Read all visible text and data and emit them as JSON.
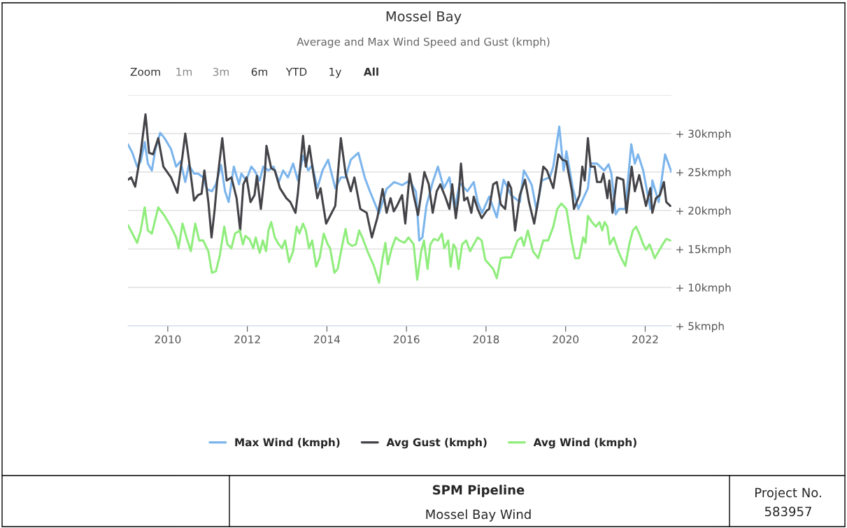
{
  "chart_data": {
    "type": "line",
    "title": "Mossel Bay",
    "subtitle": "Average and Max Wind Speed and Gust (kmph)",
    "annotations": [
      "Zoom",
      "1m",
      "3m",
      "6m",
      "YTD",
      "1y",
      "All",
      "SPM Pipeline",
      "Mossel Bay Wind",
      "Project No.",
      "583957"
    ],
    "xlim": [
      2009,
      2022.66
    ],
    "xticks": [
      2010,
      2012,
      2014,
      2016,
      2018,
      2020,
      2022
    ],
    "ylim": [
      5,
      35
    ],
    "yticks": [
      {
        "value": 5,
        "label": "+ 5kmph"
      },
      {
        "value": 10,
        "label": "+ 10kmph"
      },
      {
        "value": 15,
        "label": "+ 15kmph"
      },
      {
        "value": 20,
        "label": "+ 20kmph"
      },
      {
        "value": 25,
        "label": "+ 25kmph"
      },
      {
        "value": 30,
        "label": "+ 30kmph"
      },
      {
        "value": 35,
        "label": null
      }
    ],
    "grid": "y",
    "legend": "bottom",
    "marker": "none",
    "line_style": "solid",
    "series": [
      {
        "name": "Max Wind (kmph)",
        "color": "#7cb5ec",
        "x": [
          2009.0,
          2009.11,
          2009.23,
          2009.32,
          2009.42,
          2009.5,
          2009.6,
          2009.69,
          2009.81,
          2009.92,
          2010.08,
          2010.21,
          2010.32,
          2010.44,
          2010.53,
          2010.66,
          2010.76,
          2010.89,
          2010.98,
          2011.11,
          2011.21,
          2011.34,
          2011.44,
          2011.53,
          2011.66,
          2011.79,
          2011.85,
          2011.97,
          2012.1,
          2012.18,
          2012.31,
          2012.4,
          2012.53,
          2012.66,
          2012.79,
          2012.9,
          2013.02,
          2013.15,
          2013.27,
          2013.4,
          2013.53,
          2013.63,
          2013.76,
          2013.89,
          2014.03,
          2014.21,
          2014.35,
          2014.47,
          2014.6,
          2014.79,
          2014.95,
          2015.08,
          2015.31,
          2015.5,
          2015.69,
          2015.89,
          2016.08,
          2016.24,
          2016.32,
          2016.4,
          2016.5,
          2016.66,
          2016.79,
          2016.94,
          2017.08,
          2017.21,
          2017.34,
          2017.53,
          2017.69,
          2017.79,
          2017.9,
          2018.08,
          2018.27,
          2018.44,
          2018.63,
          2018.85,
          2018.95,
          2019.05,
          2019.15,
          2019.27,
          2019.4,
          2019.6,
          2019.69,
          2019.84,
          2019.95,
          2020.02,
          2020.18,
          2020.32,
          2020.56,
          2020.63,
          2020.79,
          2020.97,
          2021.08,
          2021.15,
          2021.26,
          2021.34,
          2021.5,
          2021.65,
          2021.74,
          2021.82,
          2021.95,
          2022.13,
          2022.18,
          2022.34,
          2022.5,
          2022.66
        ],
        "values": [
          28.6,
          27.5,
          25.7,
          26.4,
          28.9,
          26.1,
          25.2,
          28.0,
          30.1,
          29.4,
          28.0,
          25.7,
          26.4,
          23.7,
          25.9,
          24.8,
          24.8,
          24.3,
          22.8,
          22.5,
          23.4,
          25.9,
          22.5,
          21.1,
          25.7,
          23.4,
          24.8,
          23.9,
          25.7,
          25.2,
          23.9,
          25.7,
          25.2,
          25.7,
          23.7,
          25.2,
          24.3,
          26.1,
          23.9,
          27.1,
          25.2,
          25.9,
          22.9,
          25.2,
          26.6,
          22.9,
          24.3,
          24.3,
          26.6,
          27.5,
          24.3,
          22.5,
          19.6,
          22.8,
          23.7,
          23.3,
          23.9,
          22.4,
          16.1,
          16.5,
          20.6,
          23.7,
          25.7,
          22.9,
          24.3,
          20.2,
          23.6,
          22.5,
          23.7,
          21.1,
          19.7,
          21.8,
          19.1,
          24.0,
          22.0,
          21.1,
          25.2,
          24.3,
          23.3,
          20.0,
          23.9,
          24.3,
          25.7,
          30.9,
          25.2,
          27.7,
          22.9,
          20.2,
          22.9,
          26.1,
          26.1,
          25.2,
          26.0,
          24.8,
          19.5,
          20.2,
          20.2,
          28.6,
          26.1,
          27.3,
          25.2,
          20.2,
          23.9,
          21.1,
          27.3,
          25.0
        ]
      },
      {
        "name": "Avg Gust (kmph)",
        "color": "#434348",
        "x": [
          2009.0,
          2009.08,
          2009.18,
          2009.32,
          2009.44,
          2009.53,
          2009.63,
          2009.76,
          2009.89,
          2010.08,
          2010.24,
          2010.37,
          2010.44,
          2010.53,
          2010.66,
          2010.76,
          2010.85,
          2010.92,
          2011.02,
          2011.1,
          2011.18,
          2011.24,
          2011.37,
          2011.48,
          2011.6,
          2011.73,
          2011.82,
          2011.9,
          2011.98,
          2012.08,
          2012.18,
          2012.24,
          2012.34,
          2012.44,
          2012.48,
          2012.6,
          2012.69,
          2012.82,
          2012.98,
          2013.08,
          2013.21,
          2013.27,
          2013.4,
          2013.47,
          2013.56,
          2013.66,
          2013.76,
          2013.84,
          2013.98,
          2014.08,
          2014.21,
          2014.35,
          2014.47,
          2014.6,
          2014.69,
          2014.84,
          2015.0,
          2015.13,
          2015.27,
          2015.4,
          2015.5,
          2015.6,
          2015.68,
          2015.76,
          2015.89,
          2015.97,
          2016.08,
          2016.18,
          2016.29,
          2016.45,
          2016.56,
          2016.66,
          2016.76,
          2016.85,
          2016.98,
          2017.08,
          2017.15,
          2017.24,
          2017.31,
          2017.37,
          2017.45,
          2017.53,
          2017.63,
          2017.69,
          2017.79,
          2017.89,
          2018.02,
          2018.08,
          2018.18,
          2018.27,
          2018.37,
          2018.48,
          2018.56,
          2018.63,
          2018.73,
          2018.85,
          2018.98,
          2019.08,
          2019.21,
          2019.34,
          2019.44,
          2019.53,
          2019.69,
          2019.82,
          2019.92,
          2020.02,
          2020.16,
          2020.21,
          2020.35,
          2020.42,
          2020.48,
          2020.56,
          2020.63,
          2020.73,
          2020.79,
          2020.89,
          2020.95,
          2021.05,
          2021.1,
          2021.18,
          2021.29,
          2021.45,
          2021.53,
          2021.66,
          2021.74,
          2021.85,
          2022.02,
          2022.13,
          2022.18,
          2022.27,
          2022.37,
          2022.47,
          2022.53,
          2022.63
        ],
        "values": [
          24.0,
          24.3,
          23.1,
          27.5,
          32.5,
          27.5,
          27.3,
          29.4,
          25.7,
          24.3,
          22.3,
          27.1,
          30.0,
          26.6,
          21.3,
          22.0,
          22.2,
          25.2,
          21.1,
          16.5,
          20.2,
          23.7,
          29.4,
          23.9,
          24.3,
          21.6,
          17.4,
          23.4,
          24.3,
          21.1,
          22.0,
          24.5,
          20.2,
          24.8,
          28.4,
          25.5,
          25.2,
          22.9,
          21.6,
          21.1,
          19.7,
          22.2,
          29.7,
          25.7,
          28.4,
          24.8,
          21.6,
          22.9,
          18.3,
          19.3,
          20.6,
          29.4,
          24.8,
          22.5,
          24.3,
          20.2,
          19.7,
          16.5,
          19.1,
          22.8,
          19.7,
          21.6,
          19.9,
          20.6,
          22.0,
          18.3,
          24.8,
          22.0,
          19.4,
          25.0,
          23.4,
          19.7,
          22.5,
          23.4,
          21.7,
          20.2,
          23.4,
          19.0,
          21.8,
          26.1,
          21.3,
          21.7,
          19.7,
          21.8,
          20.2,
          19.0,
          20.0,
          20.2,
          23.4,
          23.7,
          20.8,
          20.2,
          23.7,
          22.9,
          17.4,
          22.0,
          24.0,
          21.1,
          18.3,
          22.2,
          25.7,
          25.2,
          22.9,
          27.3,
          26.6,
          26.4,
          22.5,
          20.2,
          22.0,
          25.7,
          23.9,
          29.4,
          25.7,
          25.7,
          23.7,
          23.7,
          24.8,
          21.6,
          23.9,
          19.7,
          24.3,
          24.0,
          19.7,
          25.7,
          22.5,
          24.6,
          20.6,
          22.9,
          19.7,
          21.6,
          22.0,
          23.7,
          21.1,
          20.6
        ]
      },
      {
        "name": "Avg Wind (kmph)",
        "color": "#90ed7d",
        "x": [
          2009.0,
          2009.11,
          2009.23,
          2009.32,
          2009.42,
          2009.5,
          2009.6,
          2009.76,
          2009.92,
          2010.08,
          2010.21,
          2010.27,
          2010.37,
          2010.47,
          2010.58,
          2010.69,
          2010.79,
          2010.89,
          2011.02,
          2011.11,
          2011.21,
          2011.31,
          2011.42,
          2011.5,
          2011.6,
          2011.69,
          2011.81,
          2011.89,
          2011.95,
          2012.05,
          2012.15,
          2012.21,
          2012.31,
          2012.39,
          2012.47,
          2012.53,
          2012.6,
          2012.69,
          2012.79,
          2012.87,
          2012.95,
          2013.05,
          2013.15,
          2013.24,
          2013.31,
          2013.4,
          2013.47,
          2013.55,
          2013.63,
          2013.73,
          2013.82,
          2013.92,
          2014.02,
          2014.08,
          2014.19,
          2014.27,
          2014.39,
          2014.47,
          2014.53,
          2014.63,
          2014.73,
          2014.81,
          2014.89,
          2015.02,
          2015.18,
          2015.31,
          2015.4,
          2015.47,
          2015.53,
          2015.63,
          2015.73,
          2015.82,
          2015.95,
          2016.05,
          2016.18,
          2016.27,
          2016.37,
          2016.44,
          2016.53,
          2016.6,
          2016.69,
          2016.79,
          2016.89,
          2016.95,
          2017.05,
          2017.11,
          2017.18,
          2017.24,
          2017.31,
          2017.4,
          2017.5,
          2017.6,
          2017.69,
          2017.79,
          2017.89,
          2017.98,
          2018.08,
          2018.18,
          2018.27,
          2018.37,
          2018.47,
          2018.63,
          2018.79,
          2018.89,
          2018.95,
          2019.05,
          2019.18,
          2019.31,
          2019.44,
          2019.56,
          2019.69,
          2019.79,
          2019.89,
          2020.02,
          2020.15,
          2020.24,
          2020.34,
          2020.44,
          2020.5,
          2020.56,
          2020.66,
          2020.76,
          2020.85,
          2020.92,
          2020.98,
          2021.05,
          2021.11,
          2021.21,
          2021.31,
          2021.4,
          2021.5,
          2021.6,
          2021.69,
          2021.77,
          2021.85,
          2021.95,
          2022.02,
          2022.11,
          2022.24,
          2022.34,
          2022.44,
          2022.53,
          2022.63
        ],
        "values": [
          18.1,
          17.0,
          15.8,
          17.4,
          20.4,
          17.4,
          17.0,
          20.4,
          19.3,
          17.9,
          16.5,
          15.1,
          18.3,
          16.5,
          14.7,
          18.3,
          16.1,
          16.1,
          14.7,
          11.9,
          12.1,
          14.2,
          17.9,
          15.6,
          15.1,
          17.0,
          17.4,
          15.6,
          16.7,
          16.3,
          15.1,
          16.5,
          14.5,
          16.1,
          14.7,
          17.4,
          18.5,
          16.5,
          15.6,
          15.1,
          16.1,
          13.3,
          14.7,
          17.9,
          17.0,
          18.3,
          17.4,
          15.1,
          16.1,
          12.7,
          13.9,
          17.0,
          15.6,
          15.1,
          11.9,
          12.4,
          15.6,
          17.6,
          15.8,
          15.4,
          15.6,
          17.4,
          16.5,
          14.7,
          12.8,
          10.6,
          13.8,
          15.8,
          13.0,
          15.1,
          16.5,
          16.1,
          15.8,
          16.5,
          15.6,
          11.0,
          14.7,
          16.1,
          12.4,
          15.6,
          16.3,
          16.1,
          17.0,
          15.1,
          16.1,
          12.7,
          15.6,
          15.1,
          12.4,
          15.6,
          16.1,
          14.7,
          15.6,
          16.5,
          16.1,
          13.6,
          13.0,
          12.4,
          11.2,
          13.8,
          13.9,
          13.9,
          16.1,
          16.5,
          15.4,
          17.4,
          14.7,
          13.8,
          16.1,
          16.1,
          17.9,
          20.2,
          20.9,
          20.2,
          16.1,
          13.8,
          13.8,
          16.5,
          15.8,
          19.3,
          18.5,
          17.9,
          18.5,
          17.4,
          18.5,
          17.9,
          15.6,
          16.5,
          14.9,
          13.8,
          12.8,
          15.6,
          17.4,
          17.9,
          17.0,
          15.6,
          14.9,
          15.6,
          13.8,
          14.7,
          15.6,
          16.3,
          16.1
        ]
      }
    ]
  }
}
